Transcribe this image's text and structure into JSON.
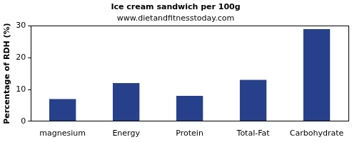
{
  "chart_data": {
    "type": "bar",
    "title": "Ice cream sandwich per 100g",
    "subtitle": "www.dietandfitnesstoday.com",
    "y_label": "Percentage of RDH (%)",
    "categories": [
      "magnesium",
      "Energy",
      "Protein",
      "Total-Fat",
      "Carbohydrate"
    ],
    "values": [
      7,
      12,
      8,
      13,
      29
    ],
    "color": "#26408b",
    "ylim": [
      0,
      30
    ],
    "yticks": [
      0,
      10,
      20,
      30
    ],
    "grid": false
  }
}
